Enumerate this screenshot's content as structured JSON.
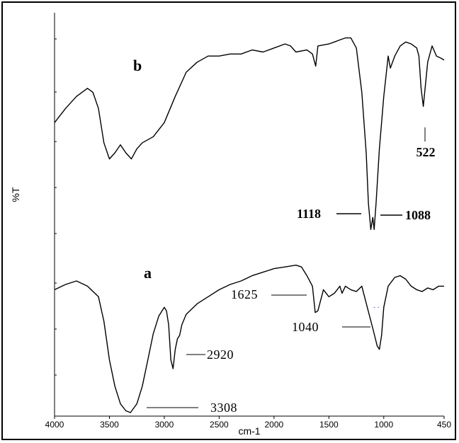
{
  "chart_data": {
    "type": "line",
    "xlabel": "cm-1",
    "ylabel": "%T",
    "x_axis": {
      "range": [
        4000,
        450
      ],
      "reversed": true,
      "ticks": [
        "4000",
        "3500",
        "3000",
        "2500",
        "2000",
        "1500",
        "1000",
        "450"
      ]
    },
    "grid": false,
    "series": [
      {
        "name": "b",
        "x": [
          4000,
          3900,
          3800,
          3700,
          3650,
          3600,
          3550,
          3500,
          3450,
          3400,
          3350,
          3300,
          3250,
          3200,
          3100,
          3000,
          2900,
          2800,
          2700,
          2600,
          2500,
          2400,
          2300,
          2200,
          2100,
          2000,
          1900,
          1850,
          1800,
          1700,
          1650,
          1620,
          1600,
          1500,
          1450,
          1400,
          1350,
          1300,
          1250,
          1200,
          1160,
          1140,
          1118,
          1100,
          1088,
          1070,
          1040,
          1000,
          960,
          940,
          900,
          850,
          800,
          750,
          700,
          680,
          660,
          640,
          600,
          560,
          520,
          480,
          450
        ],
        "y": [
          55,
          62,
          68,
          72,
          70,
          62,
          45,
          37,
          40,
          44,
          40,
          37,
          42,
          45,
          48,
          55,
          68,
          80,
          85,
          88,
          88,
          89,
          89,
          91,
          90,
          92,
          94,
          93,
          90,
          91,
          89,
          83,
          93,
          94,
          95,
          96,
          97,
          97,
          92,
          70,
          40,
          15,
          2,
          8,
          2,
          15,
          42,
          68,
          88,
          82,
          88,
          93,
          95,
          94,
          92,
          88,
          72,
          63,
          85,
          93,
          88,
          87,
          86
        ]
      },
      {
        "name": "a",
        "x": [
          4000,
          3900,
          3800,
          3700,
          3600,
          3550,
          3500,
          3450,
          3400,
          3350,
          3308,
          3250,
          3200,
          3150,
          3100,
          3050,
          3000,
          2980,
          2960,
          2940,
          2920,
          2900,
          2880,
          2860,
          2840,
          2800,
          2700,
          2600,
          2500,
          2400,
          2300,
          2200,
          2100,
          2000,
          1900,
          1800,
          1750,
          1700,
          1650,
          1625,
          1600,
          1550,
          1500,
          1450,
          1400,
          1380,
          1350,
          1300,
          1250,
          1200,
          1150,
          1100,
          1060,
          1040,
          1020,
          1000,
          960,
          900,
          850,
          800,
          750,
          700,
          650,
          600,
          550,
          500,
          450
        ],
        "y": [
          70,
          73,
          75,
          72,
          66,
          52,
          30,
          15,
          5,
          1,
          0,
          5,
          15,
          30,
          45,
          55,
          60,
          58,
          50,
          30,
          25,
          36,
          42,
          44,
          50,
          56,
          62,
          66,
          70,
          73,
          75,
          78,
          80,
          82,
          83,
          84,
          83,
          78,
          72,
          57,
          58,
          70,
          66,
          68,
          72,
          68,
          72,
          70,
          69,
          72,
          60,
          48,
          38,
          36,
          44,
          60,
          72,
          77,
          78,
          76,
          72,
          70,
          69,
          71,
          70,
          72,
          72
        ]
      }
    ],
    "annotations": [
      "522",
      "1118",
      "1088",
      "1625",
      "1040",
      "2920",
      "3308"
    ]
  }
}
